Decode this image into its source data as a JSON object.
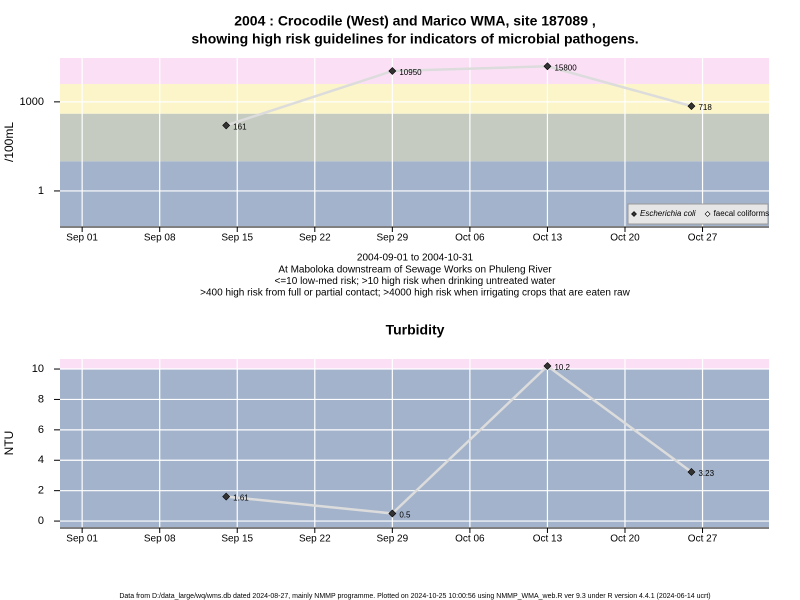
{
  "chart_data": [
    {
      "type": "line",
      "title": [
        "2004 : Crocodile (West) and Marico WMA, site 187089 ,",
        "showing high risk guidelines for indicators of microbial pathogens."
      ],
      "ylabel": "/100mL",
      "caption": [
        "2004-09-01 to 2004-10-31",
        "At Maboloka downstream of Sewage Works on Phuleng River",
        "<=10 low-med risk; >10 high risk when drinking untreated water",
        ">400 high risk from full or partial contact; >4000 high risk when irrigating crops that are eaten raw"
      ],
      "x": [
        "Sep 14",
        "Sep 29",
        "Oct 13",
        "Oct 26"
      ],
      "series": [
        {
          "name": "Escherichia coli",
          "color": "#333333",
          "values": [
            161,
            10950,
            15800,
            718
          ]
        },
        {
          "name": "faecal coliforms",
          "color": "#ffffff",
          "values": [
            null,
            null,
            null,
            null
          ]
        }
      ],
      "xlim": [
        "Aug 30",
        "Nov 02"
      ],
      "xticks": [
        "Sep 01",
        "Sep 08",
        "Sep 15",
        "Sep 22",
        "Sep 29",
        "Oct 06",
        "Oct 13",
        "Oct 20",
        "Oct 27"
      ],
      "ylim": [
        0.066,
        30000
      ],
      "yticks": [
        1,
        1000
      ],
      "log_y": true,
      "grid": true,
      "thresholds": [
        10,
        400,
        4000
      ],
      "band_colors": [
        "#a3b3cb",
        "#c5cbc1",
        "#fbf5c9",
        "#fbe0f5"
      ],
      "line_color": "#dcdcdc",
      "legend": "bottom right"
    },
    {
      "type": "line",
      "title": [
        "Turbidity"
      ],
      "ylabel": "NTU",
      "x": [
        "Sep 14",
        "Sep 29",
        "Oct 13",
        "Oct 26"
      ],
      "series": [
        {
          "name": "Turbidity",
          "color": "#333333",
          "values": [
            1.61,
            0.5,
            10.2,
            3.23
          ]
        }
      ],
      "xlim": [
        "Aug 30",
        "Nov 02"
      ],
      "xticks": [
        "Sep 01",
        "Sep 08",
        "Sep 15",
        "Sep 22",
        "Sep 29",
        "Oct 06",
        "Oct 13",
        "Oct 20",
        "Oct 27"
      ],
      "ylim": [
        -0.39,
        10.66
      ],
      "yticks": [
        0,
        2,
        4,
        6,
        8,
        10
      ],
      "log_y": false,
      "grid": true,
      "thresholds": [
        10
      ],
      "band_colors": [
        "#a3b3cb",
        "#fbe0f5"
      ],
      "line_color": "#dcdcdc"
    }
  ],
  "footer": "Data from D:/data_large/wq/wms.db dated 2024-08-27, mainly NMMP programme. Plotted on 2024-10-25 10:00:56 using NMMP_WMA_web.R ver 9.3 under R version 4.4.1 (2024-06-14 ucrt)"
}
